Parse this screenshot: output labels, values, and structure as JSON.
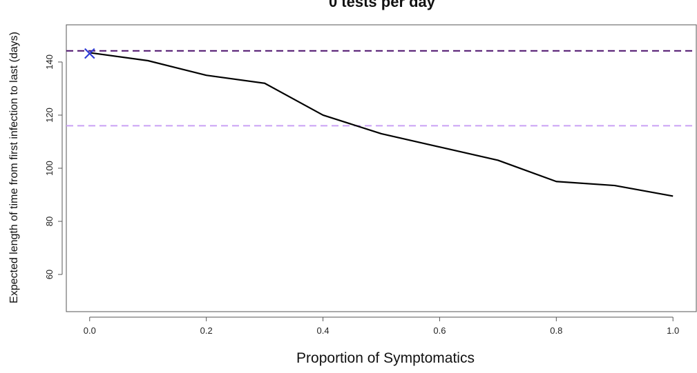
{
  "chart_data": {
    "type": "line",
    "title": "0 tests per day",
    "xlabel": "Proportion of Symptomatics",
    "ylabel": "Expected length of time from first infection to last (days)",
    "xlim": [
      -0.04,
      1.04
    ],
    "ylim": [
      46,
      154
    ],
    "x_ticks": [
      "0.0",
      "0.2",
      "0.4",
      "0.6",
      "0.8",
      "1.0"
    ],
    "y_ticks": [
      "60",
      "80",
      "100",
      "120",
      "140"
    ],
    "grid": false,
    "series": [
      {
        "color": "#000000",
        "x": [
          0.0,
          0.1,
          0.2,
          0.3,
          0.4,
          0.5,
          0.6,
          0.7,
          0.8,
          0.9,
          1.0
        ],
        "y": [
          143.5,
          140.5,
          135,
          132,
          120,
          113,
          108,
          103,
          95,
          93.5,
          89.5
        ]
      }
    ],
    "reference_lines": [
      {
        "y": 144.2,
        "color": "#4b0f6b",
        "style": "dashed"
      },
      {
        "y": 116,
        "color": "#c9a0f5",
        "style": "dashed"
      }
    ],
    "markers": [
      {
        "x": 0.0,
        "y": 143.2,
        "symbol": "x",
        "color": "#2f3bd6"
      }
    ]
  }
}
